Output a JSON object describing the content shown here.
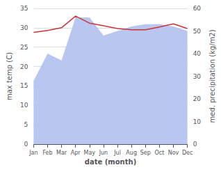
{
  "chart_data": {
    "type": "line",
    "xlabel": "date (month)",
    "ylabel": "max temp (C)",
    "y2label": "med. precipitation (kg/m2)",
    "categories": [
      "Jan",
      "Feb",
      "Mar",
      "Apr",
      "May",
      "Jun",
      "Jul",
      "Aug",
      "Sep",
      "Oct",
      "Nov",
      "Dec"
    ],
    "series": [
      {
        "type": "area",
        "color": "#b0c0ee",
        "axis": "y2",
        "values": [
          28,
          40,
          37,
          56,
          56,
          48,
          50,
          52,
          53,
          53,
          52,
          50
        ]
      },
      {
        "type": "line",
        "color": "#cc3333",
        "values": [
          28.8,
          29.3,
          30.0,
          33.0,
          31.2,
          30.5,
          29.8,
          29.5,
          29.5,
          30.2,
          31.0,
          29.8
        ]
      }
    ],
    "ylim": [
      0,
      35
    ],
    "yticks": [
      0,
      5,
      10,
      15,
      20,
      25,
      30,
      35
    ],
    "y2lim": [
      0,
      60
    ],
    "y2ticks": [
      0,
      10,
      20,
      30,
      40,
      50,
      60
    ],
    "grid": true
  }
}
